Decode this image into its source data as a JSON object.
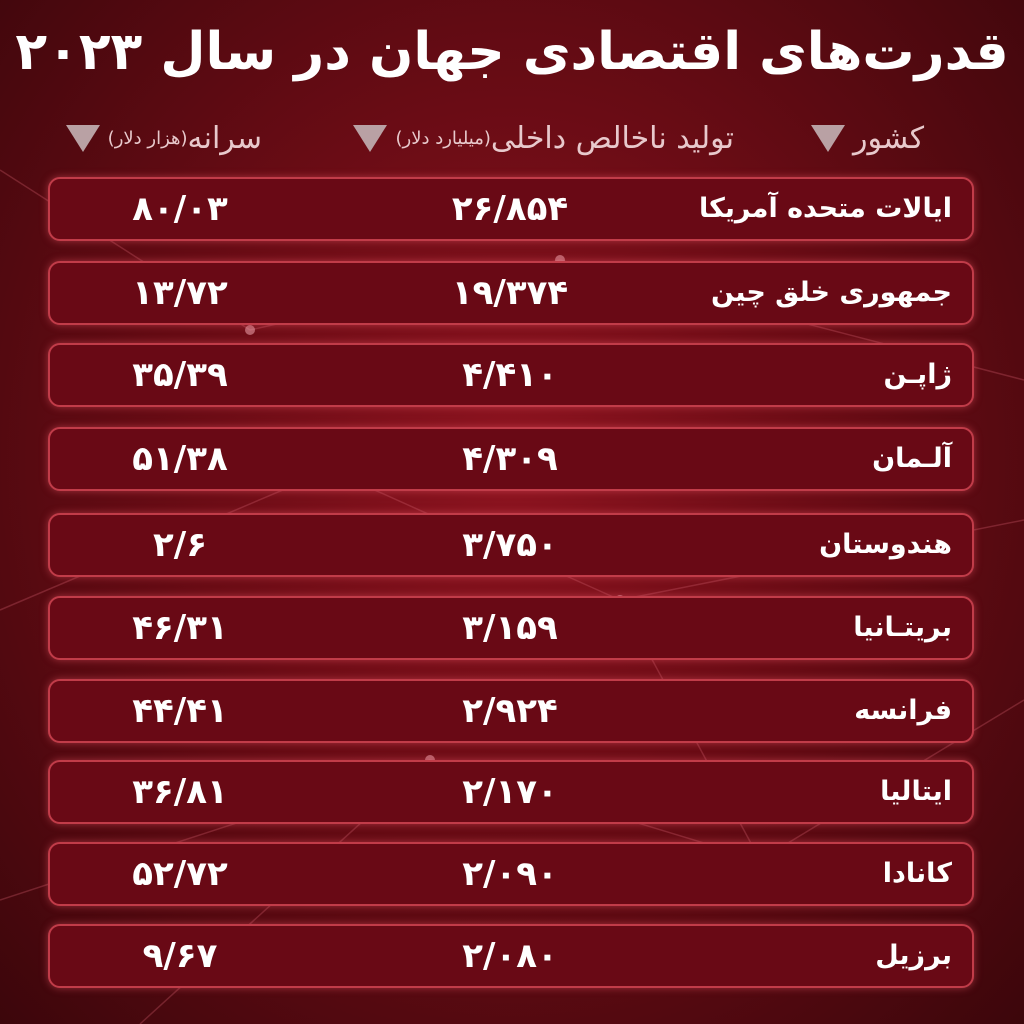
{
  "title": "قدرت‌های اقتصادی جهان در سال ۲۰۲۳",
  "headers": {
    "country": "کشور",
    "gdp": "تولید ناخالص داخلی",
    "gdp_unit": "(میلیارد دلار)",
    "per_capita": "سرانه",
    "per_capita_unit": "(هزار دلار)"
  },
  "icons": {
    "header_marker": "down-triangle-icon"
  },
  "colors": {
    "background": "#6a0c15",
    "row_fill": "#690915",
    "row_border": "#c13c49",
    "text": "#ffffff"
  },
  "chart_data": {
    "type": "table",
    "columns": [
      "کشور",
      "تولید ناخالص داخلی (میلیارد دلار)",
      "سرانه (هزار دلار)"
    ],
    "rows": [
      {
        "country": "ایالات متحده آمریکا",
        "gdp": "۲۶/۸۵۴",
        "per_capita": "۸۰/۰۳"
      },
      {
        "country": "جمهوری خلق چین",
        "gdp": "۱۹/۳۷۴",
        "per_capita": "۱۳/۷۲"
      },
      {
        "country": "ژاپـن",
        "gdp": "۴/۴۱۰",
        "per_capita": "۳۵/۳۹"
      },
      {
        "country": "آلـمان",
        "gdp": "۴/۳۰۹",
        "per_capita": "۵۱/۳۸"
      },
      {
        "country": "هندوستان",
        "gdp": "۳/۷۵۰",
        "per_capita": "۲/۶"
      },
      {
        "country": "بریتـانیا",
        "gdp": "۳/۱۵۹",
        "per_capita": "۴۶/۳۱"
      },
      {
        "country": "فرانسه",
        "gdp": "۲/۹۲۴",
        "per_capita": "۴۴/۴۱"
      },
      {
        "country": "ایتالیا",
        "gdp": "۲/۱۷۰",
        "per_capita": "۳۶/۸۱"
      },
      {
        "country": "کانادا",
        "gdp": "۲/۰۹۰",
        "per_capita": "۵۲/۷۲"
      },
      {
        "country": "برزیل",
        "gdp": "۲/۰۸۰",
        "per_capita": "۹/۶۷"
      }
    ]
  }
}
